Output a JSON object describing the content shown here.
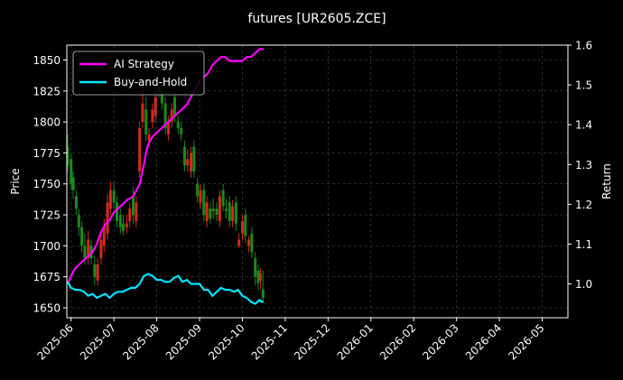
{
  "chart_data": {
    "type": "line",
    "title": "futures [UR2605.ZCE]",
    "xlabel": "",
    "ylabel": "Price",
    "y2label": "Return",
    "x_ticks": [
      "2025-06",
      "2025-07",
      "2025-08",
      "2025-09",
      "2025-10",
      "2025-11",
      "2025-12",
      "2026-01",
      "2026-02",
      "2026-03",
      "2026-04",
      "2026-05"
    ],
    "x_tick_months": [
      0,
      1,
      2,
      3,
      4,
      5,
      6,
      7,
      8,
      9,
      10,
      11
    ],
    "xlim_months": [
      -0.1,
      11.6
    ],
    "y_ticks": [
      1650,
      1675,
      1700,
      1725,
      1750,
      1775,
      1800,
      1825,
      1850
    ],
    "ylim": [
      1642,
      1862
    ],
    "y2_ticks": [
      "1.0",
      "1.1",
      "1.2",
      "1.3",
      "1.4",
      "1.5",
      "1.6"
    ],
    "y2_tick_values": [
      1.0,
      1.1,
      1.2,
      1.3,
      1.4,
      1.5,
      1.6
    ],
    "y2lim": [
      0.915,
      1.6
    ],
    "grid": true,
    "legend_position": "top-left",
    "colors": {
      "up": "#d42a1e",
      "down": "#1a8c1a",
      "ai": "#ff00ff",
      "bh": "#00e5ff",
      "background": "#000000",
      "grid": "#555555"
    },
    "series": [
      {
        "name": "AI Strategy",
        "axis": "right",
        "x_months": [
          -0.08,
          0.0,
          0.1,
          0.2,
          0.3,
          0.4,
          0.5,
          0.6,
          0.7,
          0.8,
          0.9,
          1.0,
          1.1,
          1.2,
          1.3,
          1.45,
          1.6,
          1.7,
          1.75,
          1.8,
          1.85,
          1.9,
          2.0,
          2.1,
          2.2,
          2.3,
          2.4,
          2.5,
          2.6,
          2.7,
          2.8,
          2.9,
          3.0,
          3.1,
          3.2,
          3.3,
          3.4,
          3.5,
          3.6,
          3.7,
          3.8,
          3.9,
          4.0,
          4.1,
          4.2,
          4.3,
          4.4,
          4.45,
          4.5
        ],
        "values": [
          1.0,
          1.02,
          1.04,
          1.05,
          1.06,
          1.07,
          1.08,
          1.1,
          1.13,
          1.15,
          1.16,
          1.18,
          1.19,
          1.2,
          1.21,
          1.22,
          1.25,
          1.3,
          1.33,
          1.35,
          1.36,
          1.37,
          1.38,
          1.39,
          1.4,
          1.41,
          1.42,
          1.43,
          1.44,
          1.45,
          1.47,
          1.49,
          1.51,
          1.52,
          1.53,
          1.55,
          1.56,
          1.57,
          1.57,
          1.56,
          1.56,
          1.56,
          1.56,
          1.57,
          1.57,
          1.58,
          1.59,
          1.59,
          1.59
        ]
      },
      {
        "name": "Buy-and-Hold",
        "axis": "right",
        "x_months": [
          -0.08,
          0.0,
          0.1,
          0.2,
          0.3,
          0.4,
          0.5,
          0.6,
          0.7,
          0.8,
          0.9,
          1.0,
          1.1,
          1.2,
          1.3,
          1.4,
          1.5,
          1.6,
          1.7,
          1.8,
          1.9,
          2.0,
          2.1,
          2.2,
          2.3,
          2.4,
          2.5,
          2.6,
          2.7,
          2.8,
          2.9,
          3.0,
          3.1,
          3.2,
          3.3,
          3.4,
          3.5,
          3.6,
          3.7,
          3.8,
          3.9,
          4.0,
          4.1,
          4.2,
          4.3,
          4.35,
          4.4,
          4.45,
          4.5
        ],
        "values": [
          1.005,
          0.99,
          0.985,
          0.985,
          0.98,
          0.97,
          0.975,
          0.965,
          0.97,
          0.975,
          0.965,
          0.975,
          0.98,
          0.98,
          0.985,
          0.99,
          0.99,
          1.0,
          1.02,
          1.025,
          1.02,
          1.01,
          1.01,
          1.005,
          1.005,
          1.015,
          1.02,
          1.005,
          1.01,
          1.0,
          1.0,
          1.0,
          0.985,
          0.985,
          0.97,
          0.98,
          0.99,
          0.985,
          0.985,
          0.98,
          0.985,
          0.97,
          0.965,
          0.955,
          0.95,
          0.955,
          0.96,
          0.955,
          0.955
        ]
      }
    ],
    "candles": {
      "axis": "left",
      "x_months": [
        -0.08,
        0.0,
        0.05,
        0.12,
        0.18,
        0.25,
        0.32,
        0.4,
        0.47,
        0.55,
        0.62,
        0.7,
        0.77,
        0.85,
        0.92,
        1.0,
        1.07,
        1.15,
        1.22,
        1.3,
        1.37,
        1.45,
        1.52,
        1.6,
        1.67,
        1.75,
        1.82,
        1.9,
        1.97,
        2.05,
        2.12,
        2.2,
        2.27,
        2.35,
        2.42,
        2.5,
        2.57,
        2.65,
        2.72,
        2.8,
        2.87,
        2.95,
        3.02,
        3.1,
        3.17,
        3.25,
        3.32,
        3.4,
        3.47,
        3.55,
        3.62,
        3.7,
        3.77,
        3.85,
        3.92,
        4.0,
        4.07,
        4.15,
        4.22,
        4.3,
        4.37,
        4.42,
        4.48
      ],
      "open": [
        1780,
        1770,
        1755,
        1740,
        1725,
        1715,
        1700,
        1690,
        1700,
        1685,
        1672,
        1690,
        1700,
        1710,
        1730,
        1745,
        1735,
        1725,
        1718,
        1715,
        1720,
        1740,
        1720,
        1760,
        1800,
        1810,
        1785,
        1800,
        1805,
        1830,
        1825,
        1815,
        1790,
        1800,
        1820,
        1800,
        1795,
        1780,
        1765,
        1760,
        1780,
        1750,
        1735,
        1745,
        1720,
        1730,
        1730,
        1730,
        1720,
        1745,
        1730,
        1735,
        1720,
        1735,
        1700,
        1710,
        1725,
        1700,
        1710,
        1690,
        1680,
        1672,
        1665
      ],
      "close": [
        1765,
        1750,
        1745,
        1730,
        1715,
        1700,
        1690,
        1705,
        1690,
        1675,
        1685,
        1705,
        1715,
        1735,
        1745,
        1735,
        1720,
        1715,
        1712,
        1718,
        1730,
        1725,
        1735,
        1795,
        1815,
        1790,
        1790,
        1810,
        1820,
        1825,
        1815,
        1795,
        1800,
        1810,
        1805,
        1795,
        1790,
        1765,
        1770,
        1775,
        1760,
        1740,
        1745,
        1725,
        1735,
        1722,
        1728,
        1725,
        1740,
        1732,
        1728,
        1720,
        1732,
        1718,
        1705,
        1720,
        1708,
        1705,
        1695,
        1675,
        1670,
        1678,
        1658
      ],
      "high": [
        1790,
        1775,
        1760,
        1745,
        1730,
        1720,
        1710,
        1712,
        1705,
        1692,
        1690,
        1712,
        1722,
        1742,
        1752,
        1752,
        1740,
        1730,
        1725,
        1725,
        1735,
        1748,
        1740,
        1800,
        1830,
        1820,
        1795,
        1815,
        1830,
        1840,
        1830,
        1820,
        1805,
        1815,
        1825,
        1805,
        1800,
        1785,
        1778,
        1780,
        1785,
        1755,
        1750,
        1750,
        1740,
        1735,
        1738,
        1735,
        1745,
        1750,
        1738,
        1740,
        1737,
        1740,
        1710,
        1725,
        1730,
        1708,
        1715,
        1695,
        1685,
        1682,
        1680
      ],
      "low": [
        1760,
        1745,
        1738,
        1725,
        1708,
        1695,
        1685,
        1685,
        1685,
        1668,
        1668,
        1685,
        1695,
        1705,
        1725,
        1730,
        1715,
        1710,
        1708,
        1710,
        1715,
        1718,
        1715,
        1755,
        1795,
        1785,
        1780,
        1795,
        1800,
        1820,
        1810,
        1790,
        1785,
        1795,
        1800,
        1790,
        1785,
        1760,
        1760,
        1755,
        1755,
        1735,
        1730,
        1720,
        1715,
        1718,
        1722,
        1720,
        1715,
        1728,
        1722,
        1715,
        1715,
        1712,
        1698,
        1705,
        1702,
        1695,
        1690,
        1668,
        1664,
        1665,
        1655
      ]
    }
  },
  "legend": {
    "ai_label": "AI Strategy",
    "bh_label": "Buy-and-Hold"
  }
}
